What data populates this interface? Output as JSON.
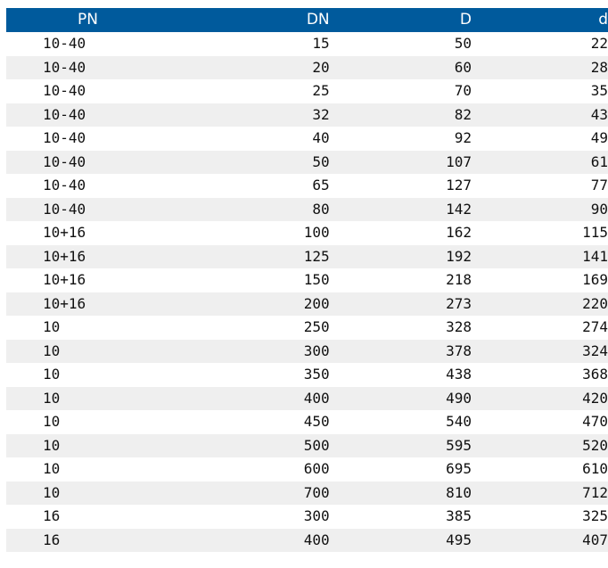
{
  "table": {
    "headers": [
      "PN",
      "DN",
      "D",
      "d"
    ],
    "rows": [
      [
        "10-40",
        "15",
        "50",
        "22"
      ],
      [
        "10-40",
        "20",
        "60",
        "28"
      ],
      [
        "10-40",
        "25",
        "70",
        "35"
      ],
      [
        "10-40",
        "32",
        "82",
        "43"
      ],
      [
        "10-40",
        "40",
        "92",
        "49"
      ],
      [
        "10-40",
        "50",
        "107",
        "61"
      ],
      [
        "10-40",
        "65",
        "127",
        "77"
      ],
      [
        "10-40",
        "80",
        "142",
        "90"
      ],
      [
        "10+16",
        "100",
        "162",
        "115"
      ],
      [
        "10+16",
        "125",
        "192",
        "141"
      ],
      [
        "10+16",
        "150",
        "218",
        "169"
      ],
      [
        "10+16",
        "200",
        "273",
        "220"
      ],
      [
        "10",
        "250",
        "328",
        "274"
      ],
      [
        "10",
        "300",
        "378",
        "324"
      ],
      [
        "10",
        "350",
        "438",
        "368"
      ],
      [
        "10",
        "400",
        "490",
        "420"
      ],
      [
        "10",
        "450",
        "540",
        "470"
      ],
      [
        "10",
        "500",
        "595",
        "520"
      ],
      [
        "10",
        "600",
        "695",
        "610"
      ],
      [
        "10",
        "700",
        "810",
        "712"
      ],
      [
        "16",
        "300",
        "385",
        "325"
      ],
      [
        "16",
        "400",
        "495",
        "407"
      ]
    ]
  },
  "colors": {
    "header_bg": "#005a9c",
    "header_text": "#ffffff",
    "stripe_bg": "#efefef"
  }
}
